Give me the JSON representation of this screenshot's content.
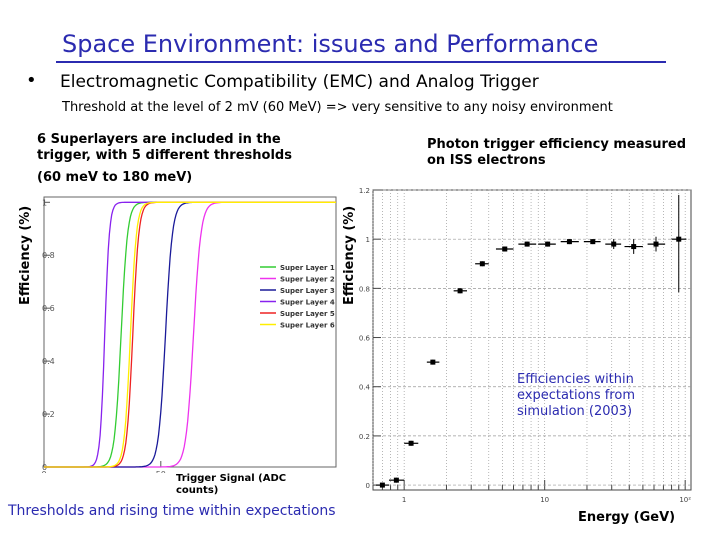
{
  "slide": {
    "title": "Space Environment: issues and Performance",
    "bullet": "•",
    "heading": "Electromagnetic Compatibility (EMC) and Analog Trigger",
    "threshold_text": "Threshold at the level of 2 mV (60 MeV) => very sensitive to any noisy environment",
    "left_note": "6 Superlayers are included in the trigger, with 5 different thresholds",
    "left_note2": "(60 meV to 180 meV)",
    "right_note": "Photon trigger efficiency measured on ISS electrons",
    "left_ylabel": "Efficiency (%)",
    "right_ylabel": "Efficiency (%)",
    "left_xlabel": "Trigger Signal (ADC counts)",
    "right_xlabel": "Energy (GeV)",
    "footer_left": "Thresholds and rising time  within expectations",
    "annotation": "Efficiencies within expectations from simulation (2003)"
  },
  "chart_data": [
    {
      "type": "line",
      "title": "",
      "xlabel": "Trigger Signal (ADC counts)",
      "ylabel": "Efficiency (%)",
      "xlim": [
        0,
        125
      ],
      "ylim": [
        0,
        1.02
      ],
      "yticks": [
        "0",
        "0.2",
        "0.4",
        "0.6",
        "0.8",
        "1"
      ],
      "xticks": [
        "0",
        "50"
      ],
      "legend_position": "right",
      "series": [
        {
          "name": "Super Layer 1",
          "color": "#33cc33",
          "mid": 33,
          "width": 1.4
        },
        {
          "name": "Super Layer 2",
          "color": "#ee33ee",
          "mid": 64,
          "width": 1.6
        },
        {
          "name": "Super Layer 3",
          "color": "#1a1a99",
          "mid": 52,
          "width": 1.5
        },
        {
          "name": "Super Layer 4",
          "color": "#8822ee",
          "mid": 26,
          "width": 1.0
        },
        {
          "name": "Super Layer 5",
          "color": "#ee2222",
          "mid": 38,
          "width": 1.3
        },
        {
          "name": "Super Layer 6",
          "color": "#ffee00",
          "mid": 37,
          "width": 1.3
        }
      ]
    },
    {
      "type": "scatter",
      "title": "",
      "xlabel": "Energy (GeV)",
      "ylabel": "Efficiency (%)",
      "xscale": "log",
      "xlim": [
        0.6,
        110
      ],
      "ylim": [
        -0.02,
        1.2
      ],
      "yticks": [
        "0",
        "0.2",
        "0.4",
        "0.6",
        "0.8",
        "1",
        "1.2"
      ],
      "xticks": [
        "1",
        "10",
        "10²"
      ],
      "grid": true,
      "points": [
        {
          "x": 0.7,
          "y": 0.0,
          "xerr": [
            0.63,
            0.78
          ],
          "yerr": 0.01
        },
        {
          "x": 0.88,
          "y": 0.02,
          "xerr": [
            0.78,
            1.0
          ],
          "yerr": 0.01
        },
        {
          "x": 1.12,
          "y": 0.17,
          "xerr": [
            1.0,
            1.26
          ],
          "yerr": 0.01
        },
        {
          "x": 1.6,
          "y": 0.5,
          "xerr": [
            1.45,
            1.78
          ],
          "yerr": 0.01
        },
        {
          "x": 2.5,
          "y": 0.79,
          "xerr": [
            2.25,
            2.8
          ],
          "yerr": 0.01
        },
        {
          "x": 3.6,
          "y": 0.9,
          "xerr": [
            3.2,
            4.0
          ],
          "yerr": 0.01
        },
        {
          "x": 5.2,
          "y": 0.96,
          "xerr": [
            4.5,
            6.0
          ],
          "yerr": 0.01
        },
        {
          "x": 7.5,
          "y": 0.98,
          "xerr": [
            6.5,
            8.7
          ],
          "yerr": 0.01
        },
        {
          "x": 10.5,
          "y": 0.98,
          "xerr": [
            9.0,
            12.0
          ],
          "yerr": 0.01
        },
        {
          "x": 15.0,
          "y": 0.99,
          "xerr": [
            13.0,
            17.5
          ],
          "yerr": 0.01
        },
        {
          "x": 22.0,
          "y": 0.99,
          "xerr": [
            19.0,
            25.0
          ],
          "yerr": 0.01
        },
        {
          "x": 31.0,
          "y": 0.98,
          "xerr": [
            27.0,
            35.0
          ],
          "yerr": 0.02
        },
        {
          "x": 43.0,
          "y": 0.97,
          "xerr": [
            37.0,
            50.0
          ],
          "yerr": 0.03
        },
        {
          "x": 62.0,
          "y": 0.98,
          "xerr": [
            54.0,
            72.0
          ],
          "yerr": 0.03
        },
        {
          "x": 90.0,
          "y": 1.0,
          "xerr": [
            80.0,
            102.0
          ],
          "yerr": 0.18
        }
      ]
    }
  ]
}
